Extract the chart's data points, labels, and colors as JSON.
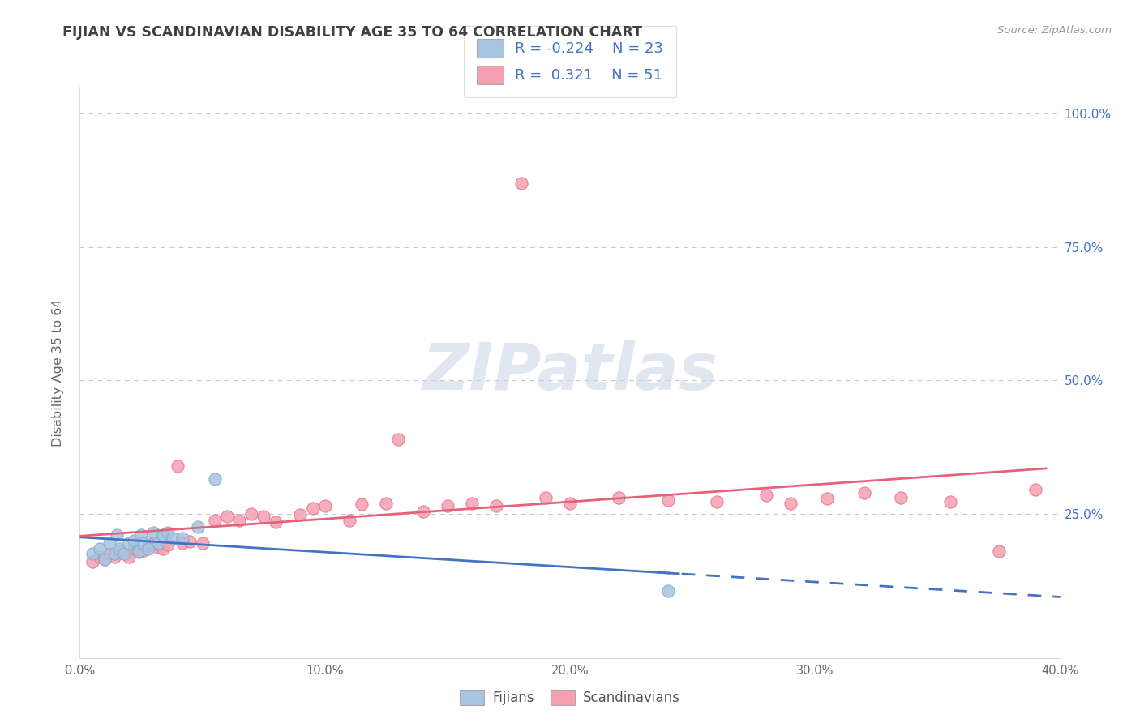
{
  "title": "FIJIAN VS SCANDINAVIAN DISABILITY AGE 35 TO 64 CORRELATION CHART",
  "source": "Source: ZipAtlas.com",
  "ylabel": "Disability Age 35 to 64",
  "xlim": [
    0.0,
    0.4
  ],
  "ylim": [
    -0.02,
    1.05
  ],
  "xtick_labels": [
    "0.0%",
    "",
    "10.0%",
    "",
    "20.0%",
    "",
    "30.0%",
    "",
    "40.0%"
  ],
  "xtick_vals": [
    0.0,
    0.05,
    0.1,
    0.15,
    0.2,
    0.25,
    0.3,
    0.35,
    0.4
  ],
  "ytick_vals": [
    0.25,
    0.5,
    0.75,
    1.0
  ],
  "right_ytick_labels": [
    "100.0%",
    "75.0%",
    "50.0%",
    "25.0%"
  ],
  "right_ytick_vals": [
    1.0,
    0.75,
    0.5,
    0.25
  ],
  "fijian_color": "#a8c4e0",
  "fijian_edge_color": "#7aafd4",
  "scandinavian_color": "#f4a0b0",
  "scandinavian_edge_color": "#e87090",
  "fijian_trend_color": "#4472c4",
  "scandinavian_trend_color": "#e8607a",
  "background_color": "#ffffff",
  "grid_color": "#c8c8c8",
  "title_color": "#404040",
  "right_axis_color": "#4472c4",
  "watermark_color": "#ccd8e8",
  "watermark": "ZIPatlas",
  "legend_color": "#4472c4",
  "fijian_x": [
    0.005,
    0.008,
    0.01,
    0.012,
    0.014,
    0.015,
    0.016,
    0.018,
    0.02,
    0.022,
    0.024,
    0.025,
    0.026,
    0.028,
    0.03,
    0.032,
    0.034,
    0.036,
    0.038,
    0.042,
    0.048,
    0.055,
    0.24
  ],
  "fijian_y": [
    0.175,
    0.185,
    0.165,
    0.195,
    0.175,
    0.21,
    0.185,
    0.175,
    0.195,
    0.2,
    0.18,
    0.21,
    0.195,
    0.185,
    0.215,
    0.195,
    0.21,
    0.215,
    0.205,
    0.205,
    0.225,
    0.315,
    0.105
  ],
  "scandinavian_x": [
    0.005,
    0.008,
    0.01,
    0.012,
    0.014,
    0.016,
    0.018,
    0.02,
    0.022,
    0.024,
    0.026,
    0.028,
    0.03,
    0.032,
    0.034,
    0.036,
    0.04,
    0.042,
    0.045,
    0.05,
    0.055,
    0.06,
    0.065,
    0.07,
    0.075,
    0.08,
    0.09,
    0.095,
    0.1,
    0.11,
    0.115,
    0.125,
    0.13,
    0.14,
    0.15,
    0.16,
    0.17,
    0.18,
    0.19,
    0.2,
    0.22,
    0.24,
    0.26,
    0.28,
    0.29,
    0.305,
    0.32,
    0.335,
    0.355,
    0.375,
    0.39
  ],
  "scandinavian_y": [
    0.16,
    0.17,
    0.165,
    0.175,
    0.17,
    0.18,
    0.175,
    0.17,
    0.185,
    0.178,
    0.182,
    0.19,
    0.195,
    0.188,
    0.185,
    0.192,
    0.34,
    0.195,
    0.198,
    0.195,
    0.238,
    0.245,
    0.238,
    0.25,
    0.245,
    0.235,
    0.248,
    0.26,
    0.265,
    0.238,
    0.268,
    0.27,
    0.39,
    0.255,
    0.265,
    0.27,
    0.265,
    0.87,
    0.28,
    0.27,
    0.28,
    0.275,
    0.272,
    0.285,
    0.27,
    0.278,
    0.29,
    0.28,
    0.272,
    0.18,
    0.295
  ]
}
